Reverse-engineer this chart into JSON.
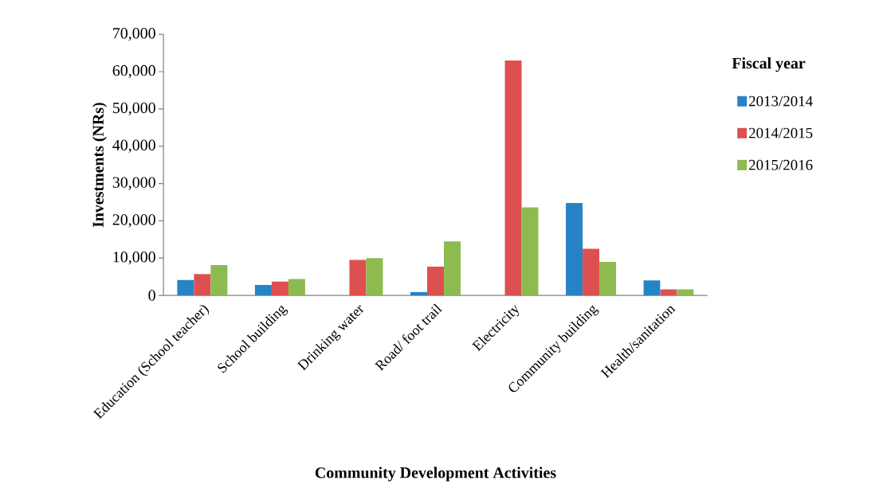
{
  "chart_data": {
    "type": "bar",
    "xlabel": "Community Development Activities",
    "ylabel": "Investments (NRs)",
    "legend_title": "Fiscal year",
    "legend": "right",
    "categories": [
      "Education (School teacher)",
      "School building",
      "Drinking water",
      "Road/ foot trail",
      "Electricity",
      "Community building",
      "Health/sanitation"
    ],
    "series": [
      {
        "name": "2013/2014",
        "color": "#2683c6",
        "values": [
          4100,
          2800,
          0,
          900,
          0,
          24800,
          4000
        ]
      },
      {
        "name": "2014/2015",
        "color": "#dd5050",
        "values": [
          5700,
          3700,
          9500,
          7700,
          63000,
          12500,
          1600
        ]
      },
      {
        "name": "2015/2016",
        "color": "#8dbb50",
        "values": [
          8100,
          4400,
          10000,
          14500,
          23600,
          9000,
          1600
        ]
      }
    ],
    "ylim": [
      0,
      70000
    ],
    "yticks": [
      0,
      {
        "value": 10000,
        "label": "10,000"
      },
      {
        "value": 20000,
        "label": "20,000"
      },
      {
        "value": 30000,
        "label": "30,000"
      },
      {
        "value": 40000,
        "label": "40,000"
      },
      {
        "value": 50000,
        "label": "50,000"
      },
      {
        "value": 60000,
        "label": "60,000"
      },
      {
        "value": 70000,
        "label": "70,000"
      }
    ],
    "grid": false
  }
}
